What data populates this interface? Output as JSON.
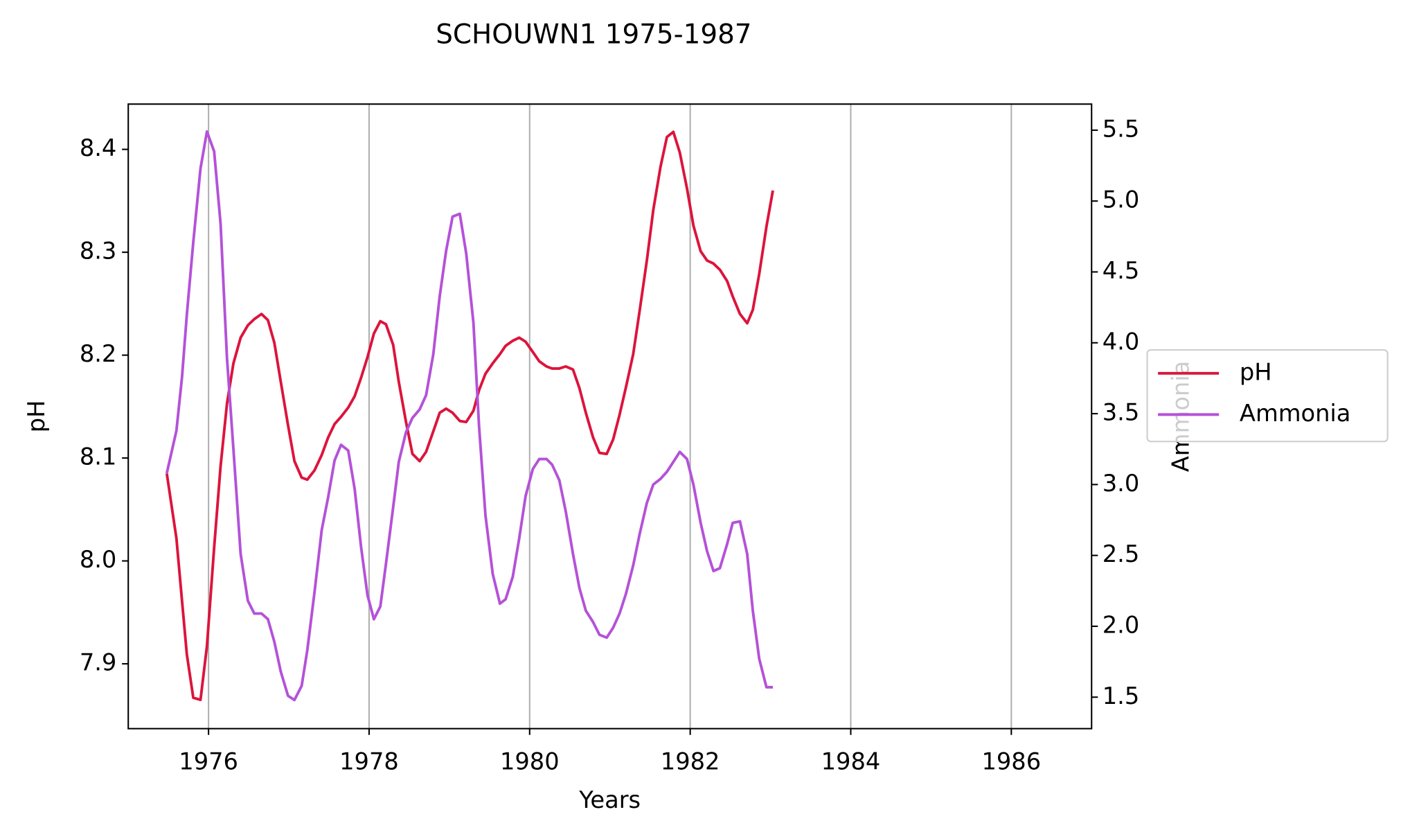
{
  "chart_data": {
    "type": "line",
    "title": "SCHOUWN1 1975-1987",
    "x_label": "Years",
    "y_label": "pH",
    "y2_label": "Ammonia",
    "x": [
      1975.48,
      1975.6,
      1975.67,
      1975.73,
      1975.81,
      1975.9,
      1975.98,
      1976.07,
      1976.15,
      1976.23,
      1976.31,
      1976.4,
      1976.49,
      1976.57,
      1976.66,
      1976.74,
      1976.82,
      1976.9,
      1976.99,
      1977.07,
      1977.16,
      1977.23,
      1977.32,
      1977.41,
      1977.49,
      1977.57,
      1977.65,
      1977.74,
      1977.82,
      1977.9,
      1977.98,
      1978.06,
      1978.14,
      1978.21,
      1978.3,
      1978.37,
      1978.46,
      1978.54,
      1978.63,
      1978.71,
      1978.8,
      1978.88,
      1978.96,
      1979.04,
      1979.13,
      1979.21,
      1979.3,
      1979.37,
      1979.45,
      1979.54,
      1979.63,
      1979.7,
      1979.79,
      1979.87,
      1979.95,
      1980.04,
      1980.12,
      1980.21,
      1980.28,
      1980.37,
      1980.45,
      1980.54,
      1980.62,
      1980.7,
      1980.79,
      1980.87,
      1980.96,
      1981.04,
      1981.12,
      1981.2,
      1981.29,
      1981.37,
      1981.46,
      1981.54,
      1981.63,
      1981.71,
      1981.79,
      1981.87,
      1981.96,
      1982.04,
      1982.13,
      1982.21,
      1982.29,
      1982.37,
      1982.46,
      1982.53,
      1982.62,
      1982.71,
      1982.78,
      1982.86,
      1982.95,
      1983.03
    ],
    "series": [
      {
        "name": "pH",
        "color": "#dc143c",
        "values": [
          8.085,
          8.022,
          7.961,
          7.909,
          7.867,
          7.865,
          7.917,
          8.013,
          8.092,
          8.153,
          8.192,
          8.217,
          8.229,
          8.235,
          8.24,
          8.234,
          8.212,
          8.174,
          8.132,
          8.097,
          8.081,
          8.079,
          8.088,
          8.103,
          8.12,
          8.133,
          8.14,
          8.149,
          8.16,
          8.178,
          8.198,
          8.221,
          8.233,
          8.23,
          8.21,
          8.174,
          8.135,
          8.104,
          8.097,
          8.106,
          8.126,
          8.144,
          8.148,
          8.144,
          8.136,
          8.135,
          8.146,
          8.166,
          8.182,
          8.192,
          8.201,
          8.209,
          8.214,
          8.217,
          8.213,
          8.203,
          8.194,
          8.189,
          8.187,
          8.187,
          8.189,
          8.186,
          8.168,
          8.144,
          8.12,
          8.105,
          8.104,
          8.118,
          8.142,
          8.169,
          8.201,
          8.243,
          8.292,
          8.341,
          8.383,
          8.412,
          8.417,
          8.397,
          8.362,
          8.326,
          8.301,
          8.292,
          8.289,
          8.283,
          8.272,
          8.257,
          8.24,
          8.231,
          8.244,
          8.279,
          8.325,
          8.36
        ]
      },
      {
        "name": "Ammonia",
        "color": "#b452d8",
        "axis": "y2",
        "values": [
          3.08,
          3.38,
          3.76,
          4.2,
          4.71,
          5.23,
          5.49,
          5.35,
          4.84,
          3.89,
          3.25,
          2.51,
          2.18,
          2.09,
          2.09,
          2.05,
          1.89,
          1.68,
          1.51,
          1.48,
          1.58,
          1.83,
          2.24,
          2.68,
          2.91,
          3.17,
          3.28,
          3.24,
          2.97,
          2.56,
          2.22,
          2.05,
          2.14,
          2.44,
          2.84,
          3.16,
          3.37,
          3.47,
          3.53,
          3.63,
          3.92,
          4.33,
          4.65,
          4.89,
          4.91,
          4.63,
          4.14,
          3.41,
          2.78,
          2.37,
          2.16,
          2.19,
          2.35,
          2.62,
          2.92,
          3.11,
          3.18,
          3.18,
          3.14,
          3.03,
          2.81,
          2.51,
          2.27,
          2.11,
          2.03,
          1.94,
          1.92,
          1.99,
          2.09,
          2.23,
          2.43,
          2.65,
          2.87,
          3.0,
          3.04,
          3.09,
          3.16,
          3.23,
          3.18,
          3.0,
          2.73,
          2.53,
          2.39,
          2.41,
          2.58,
          2.73,
          2.74,
          2.51,
          2.11,
          1.77,
          1.57,
          1.57
        ]
      }
    ],
    "xlim": [
      1975,
      1987
    ],
    "xticks": [
      1976,
      1978,
      1980,
      1982,
      1984,
      1986
    ],
    "ylim": [
      7.837,
      8.444
    ],
    "yticks": [
      7.9,
      {
        "value": 8,
        "label": "8.0"
      },
      8.1,
      8.2,
      8.3,
      8.4
    ],
    "y2lim": [
      1.278,
      5.684
    ],
    "y2ticks": [
      1.5,
      {
        "value": 2,
        "label": "2.0"
      },
      2.5,
      {
        "value": 3,
        "label": "3.0"
      },
      3.5,
      {
        "value": 4,
        "label": "4.0"
      },
      4.5,
      {
        "value": 5,
        "label": "5.0"
      },
      5.5
    ],
    "grid": "x",
    "legend": "center right"
  }
}
